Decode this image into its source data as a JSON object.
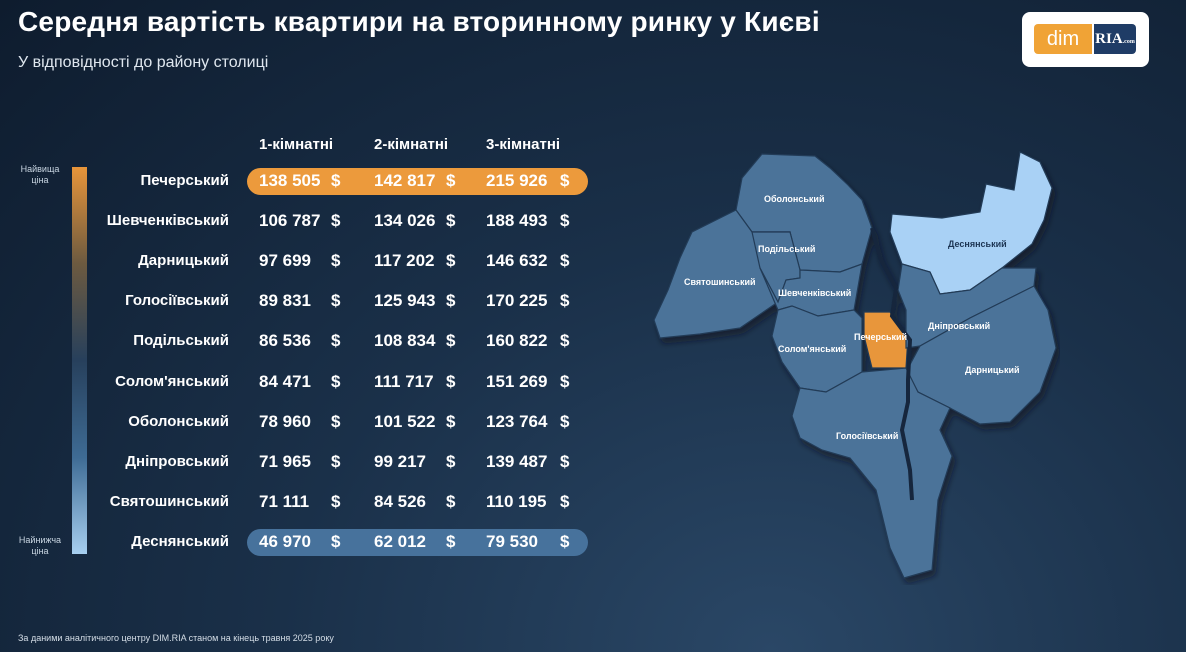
{
  "header": {
    "title": "Середня вартість квартири на вторинному ринку у Києві",
    "subtitle": "У відповідності до району столиці"
  },
  "logo": {
    "left": "dim",
    "right": "RIA",
    "right_small": ".com"
  },
  "scale": {
    "top": "Найвища ціна",
    "bottom": "Найнижча ціна"
  },
  "chart_data": {
    "type": "table",
    "columns": [
      "1-кімнатні",
      "2-кімнатні",
      "3-кімнатні"
    ],
    "currency": "$",
    "rows": [
      {
        "district": "Печерський",
        "values": [
          "138 505",
          "142 817",
          "215 926"
        ]
      },
      {
        "district": "Шевченківський",
        "values": [
          "106 787",
          "134 026",
          "188 493"
        ]
      },
      {
        "district": "Дарницький",
        "values": [
          "97 699",
          "117 202",
          "146 632"
        ]
      },
      {
        "district": "Голосіївський",
        "values": [
          "89 831",
          "125 943",
          "170 225"
        ]
      },
      {
        "district": "Подільський",
        "values": [
          "86 536",
          "108 834",
          "160 822"
        ]
      },
      {
        "district": "Солом'янський",
        "values": [
          "84 471",
          "111 717",
          "151 269"
        ]
      },
      {
        "district": "Оболонський",
        "values": [
          "78 960",
          "101 522",
          "123 764"
        ]
      },
      {
        "district": "Дніпровський",
        "values": [
          "71 965",
          "99 217",
          "139 487"
        ]
      },
      {
        "district": "Святошинський",
        "values": [
          "71 111",
          "84 526",
          "110 195"
        ]
      },
      {
        "district": "Деснянський",
        "values": [
          "46 970",
          "62 012",
          "79 530"
        ]
      }
    ],
    "highest": "Печерський",
    "lowest": "Деснянський"
  },
  "map": {
    "labels": {
      "obolonskyi": "Оболонський",
      "podilskyi": "Подільський",
      "sviatoshynskyi": "Святошинський",
      "shevchenkivskyi": "Шевченківський",
      "solomianskyi": "Солом'янський",
      "pecherskyi": "Печерський",
      "dniprovskyi": "Дніпровський",
      "desnianskyi": "Деснянський",
      "darnytskyi": "Дарницький",
      "holosiivskyi": "Голосіївський"
    },
    "colors": {
      "base": "#4b7399",
      "lightest": "#a9d1f5",
      "highest": "#e8963a"
    }
  },
  "footnote": "За даними аналітичного центру DIM.RIA станом на кінець травня 2025 року"
}
